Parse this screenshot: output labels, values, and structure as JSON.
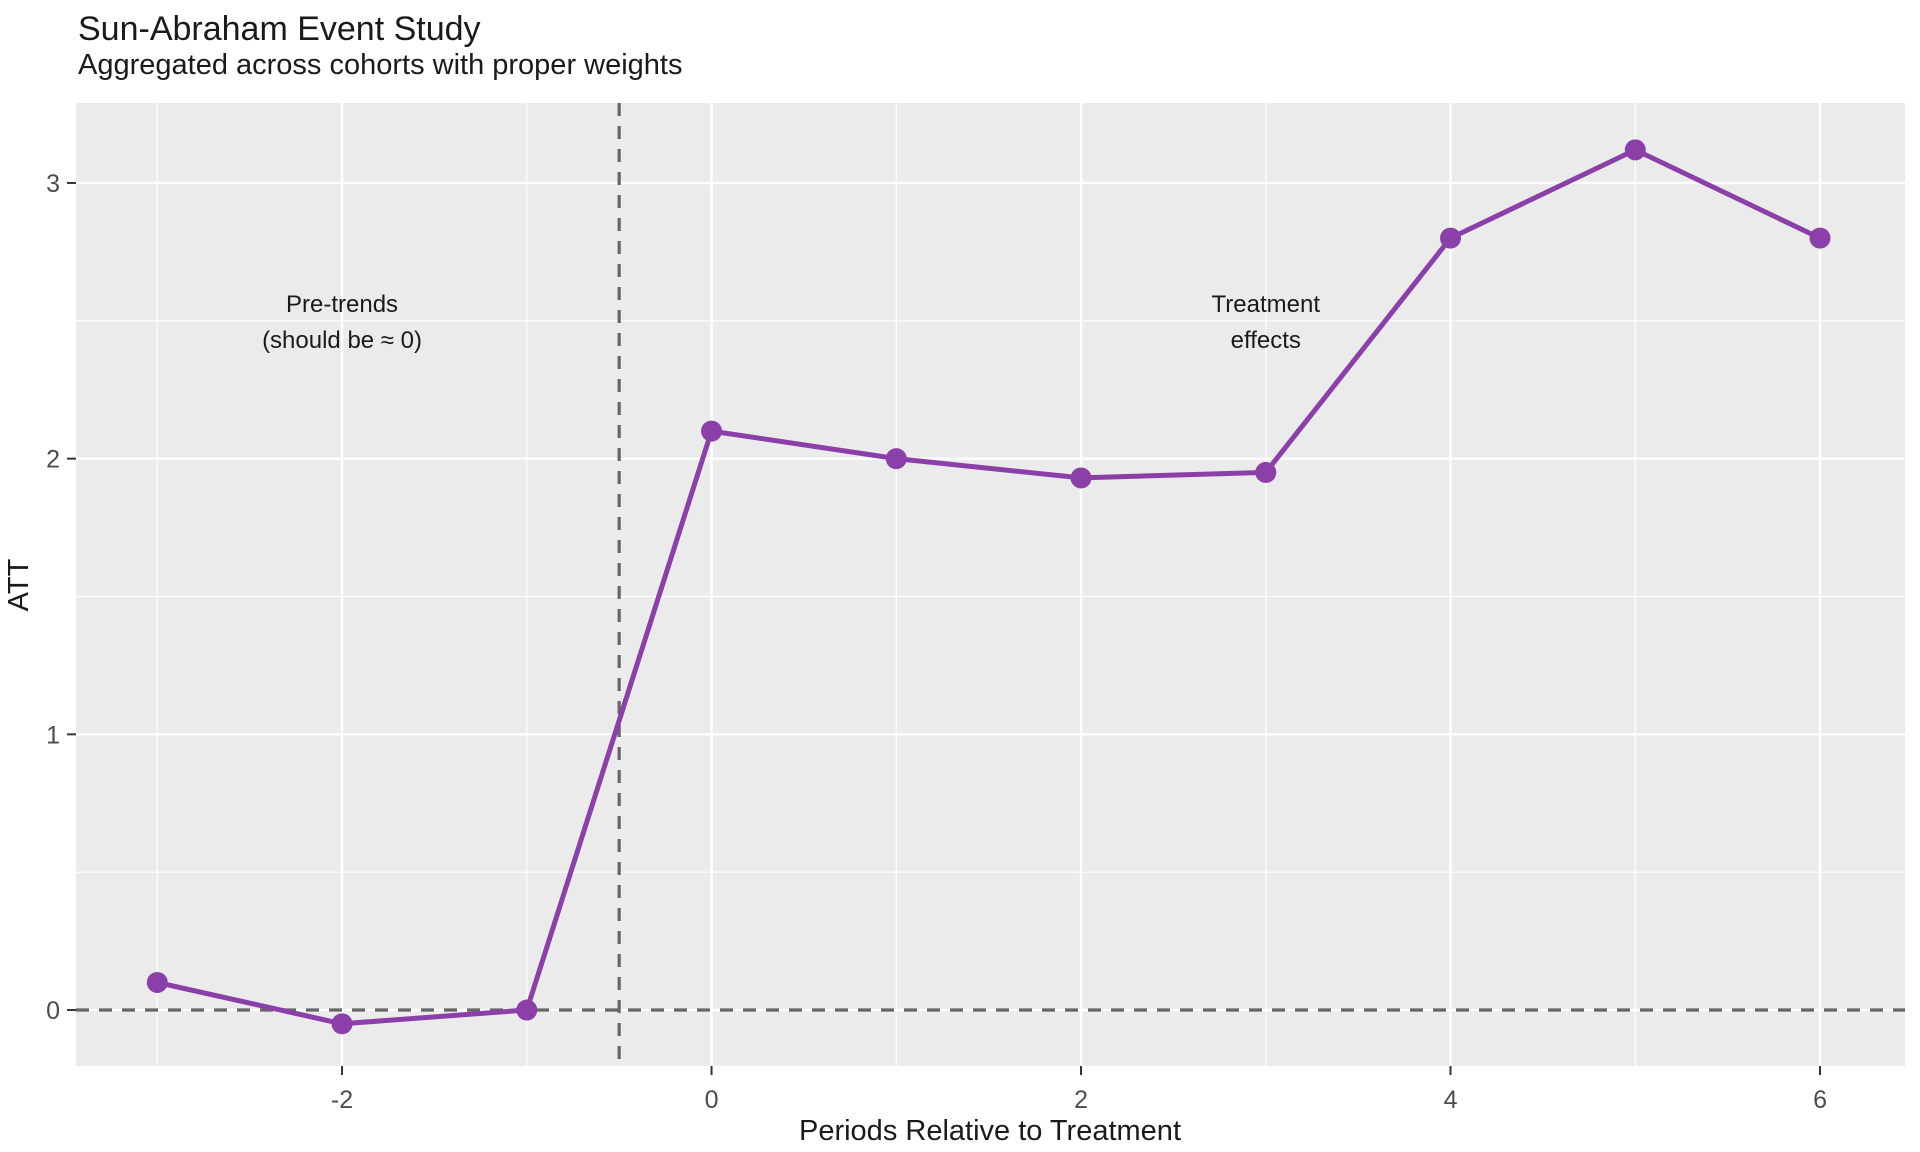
{
  "title": "Sun-Abraham Event Study",
  "subtitle": "Aggregated across cohorts with proper weights",
  "chart_data": {
    "type": "line",
    "x": [
      -3,
      -2,
      -1,
      0,
      1,
      2,
      3,
      4,
      5,
      6
    ],
    "series": [
      {
        "name": "ATT",
        "values": [
          0.1,
          -0.05,
          0.0,
          2.1,
          2.0,
          1.93,
          1.95,
          2.8,
          3.12,
          2.8
        ]
      }
    ],
    "title": "Sun-Abraham Event Study",
    "subtitle": "Aggregated across cohorts with proper weights",
    "xlabel": "Periods Relative to Treatment",
    "ylabel": "ATT",
    "xlim": [
      -3.44,
      6.46
    ],
    "ylim": [
      -0.203,
      3.29
    ],
    "x_ticks": [
      -2,
      0,
      2,
      4,
      6
    ],
    "x_tick_labels": [
      "-2",
      "0",
      "2",
      "4",
      "6"
    ],
    "y_ticks": [
      0,
      1,
      2,
      3
    ],
    "y_tick_labels": [
      "0",
      "1",
      "2",
      "3"
    ],
    "x_minor_ticks": [
      -3,
      -1,
      1,
      3,
      5
    ],
    "y_minor_ticks": [
      0.5,
      1.5,
      2.5
    ],
    "reference_lines": {
      "vline_x": -0.5,
      "hline_y": 0,
      "style": "dashed"
    },
    "annotations": [
      {
        "x": -2,
        "y": 2.5,
        "lines": [
          "Pre-trends",
          "(should be ≈ 0)"
        ]
      },
      {
        "x": 3,
        "y": 2.5,
        "lines": [
          "Treatment",
          "effects"
        ]
      }
    ],
    "grid": true,
    "legend": false,
    "colors": {
      "series_line": "#8B3FA8",
      "point_fill": "#8B3FA8",
      "dashed_reference": "#666666",
      "panel_background": "#EBEBEB",
      "gridline": "#FFFFFF",
      "tick_mark": "#333333",
      "tick_label": "#4D4D4D",
      "text": "#1A1A1A"
    }
  }
}
